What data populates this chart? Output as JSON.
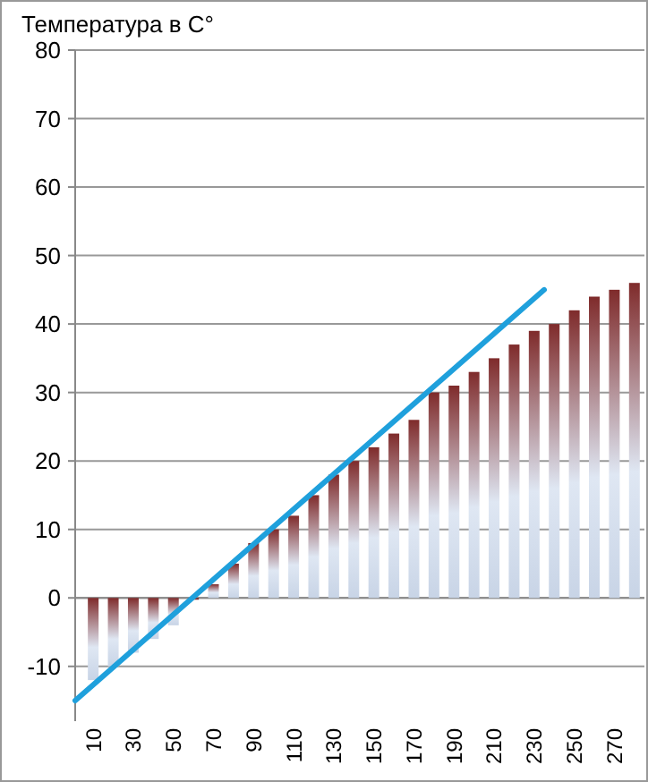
{
  "chart_data": {
    "type": "bar",
    "ylabel": "Температура в С°",
    "x": [
      10,
      20,
      30,
      40,
      50,
      60,
      70,
      80,
      90,
      100,
      110,
      120,
      130,
      140,
      150,
      160,
      170,
      180,
      190,
      200,
      210,
      220,
      230,
      240,
      250,
      260,
      270,
      280
    ],
    "series": [
      {
        "color": "#7f2b2b",
        "values": [
          -12,
          -10,
          -8,
          -6,
          -4,
          0,
          2,
          5,
          8,
          10,
          12,
          15,
          18,
          20,
          22,
          24,
          26,
          30,
          31,
          33,
          35,
          37,
          39,
          40,
          42,
          44,
          45,
          46
        ]
      },
      {
        "type": "line",
        "color": "#1fa0dc",
        "x": [
          1,
          235
        ],
        "values": [
          -15,
          45
        ]
      }
    ],
    "xlim": [
      1,
      285
    ],
    "xticks": [
      10,
      30,
      50,
      70,
      90,
      110,
      130,
      150,
      170,
      190,
      210,
      230,
      250,
      270
    ],
    "ylim": [
      -18,
      80
    ],
    "yticks": [
      -10,
      0,
      10,
      20,
      30,
      40,
      50,
      60,
      70,
      80
    ],
    "grid": "y",
    "marker": "none",
    "line_style": "solid"
  }
}
